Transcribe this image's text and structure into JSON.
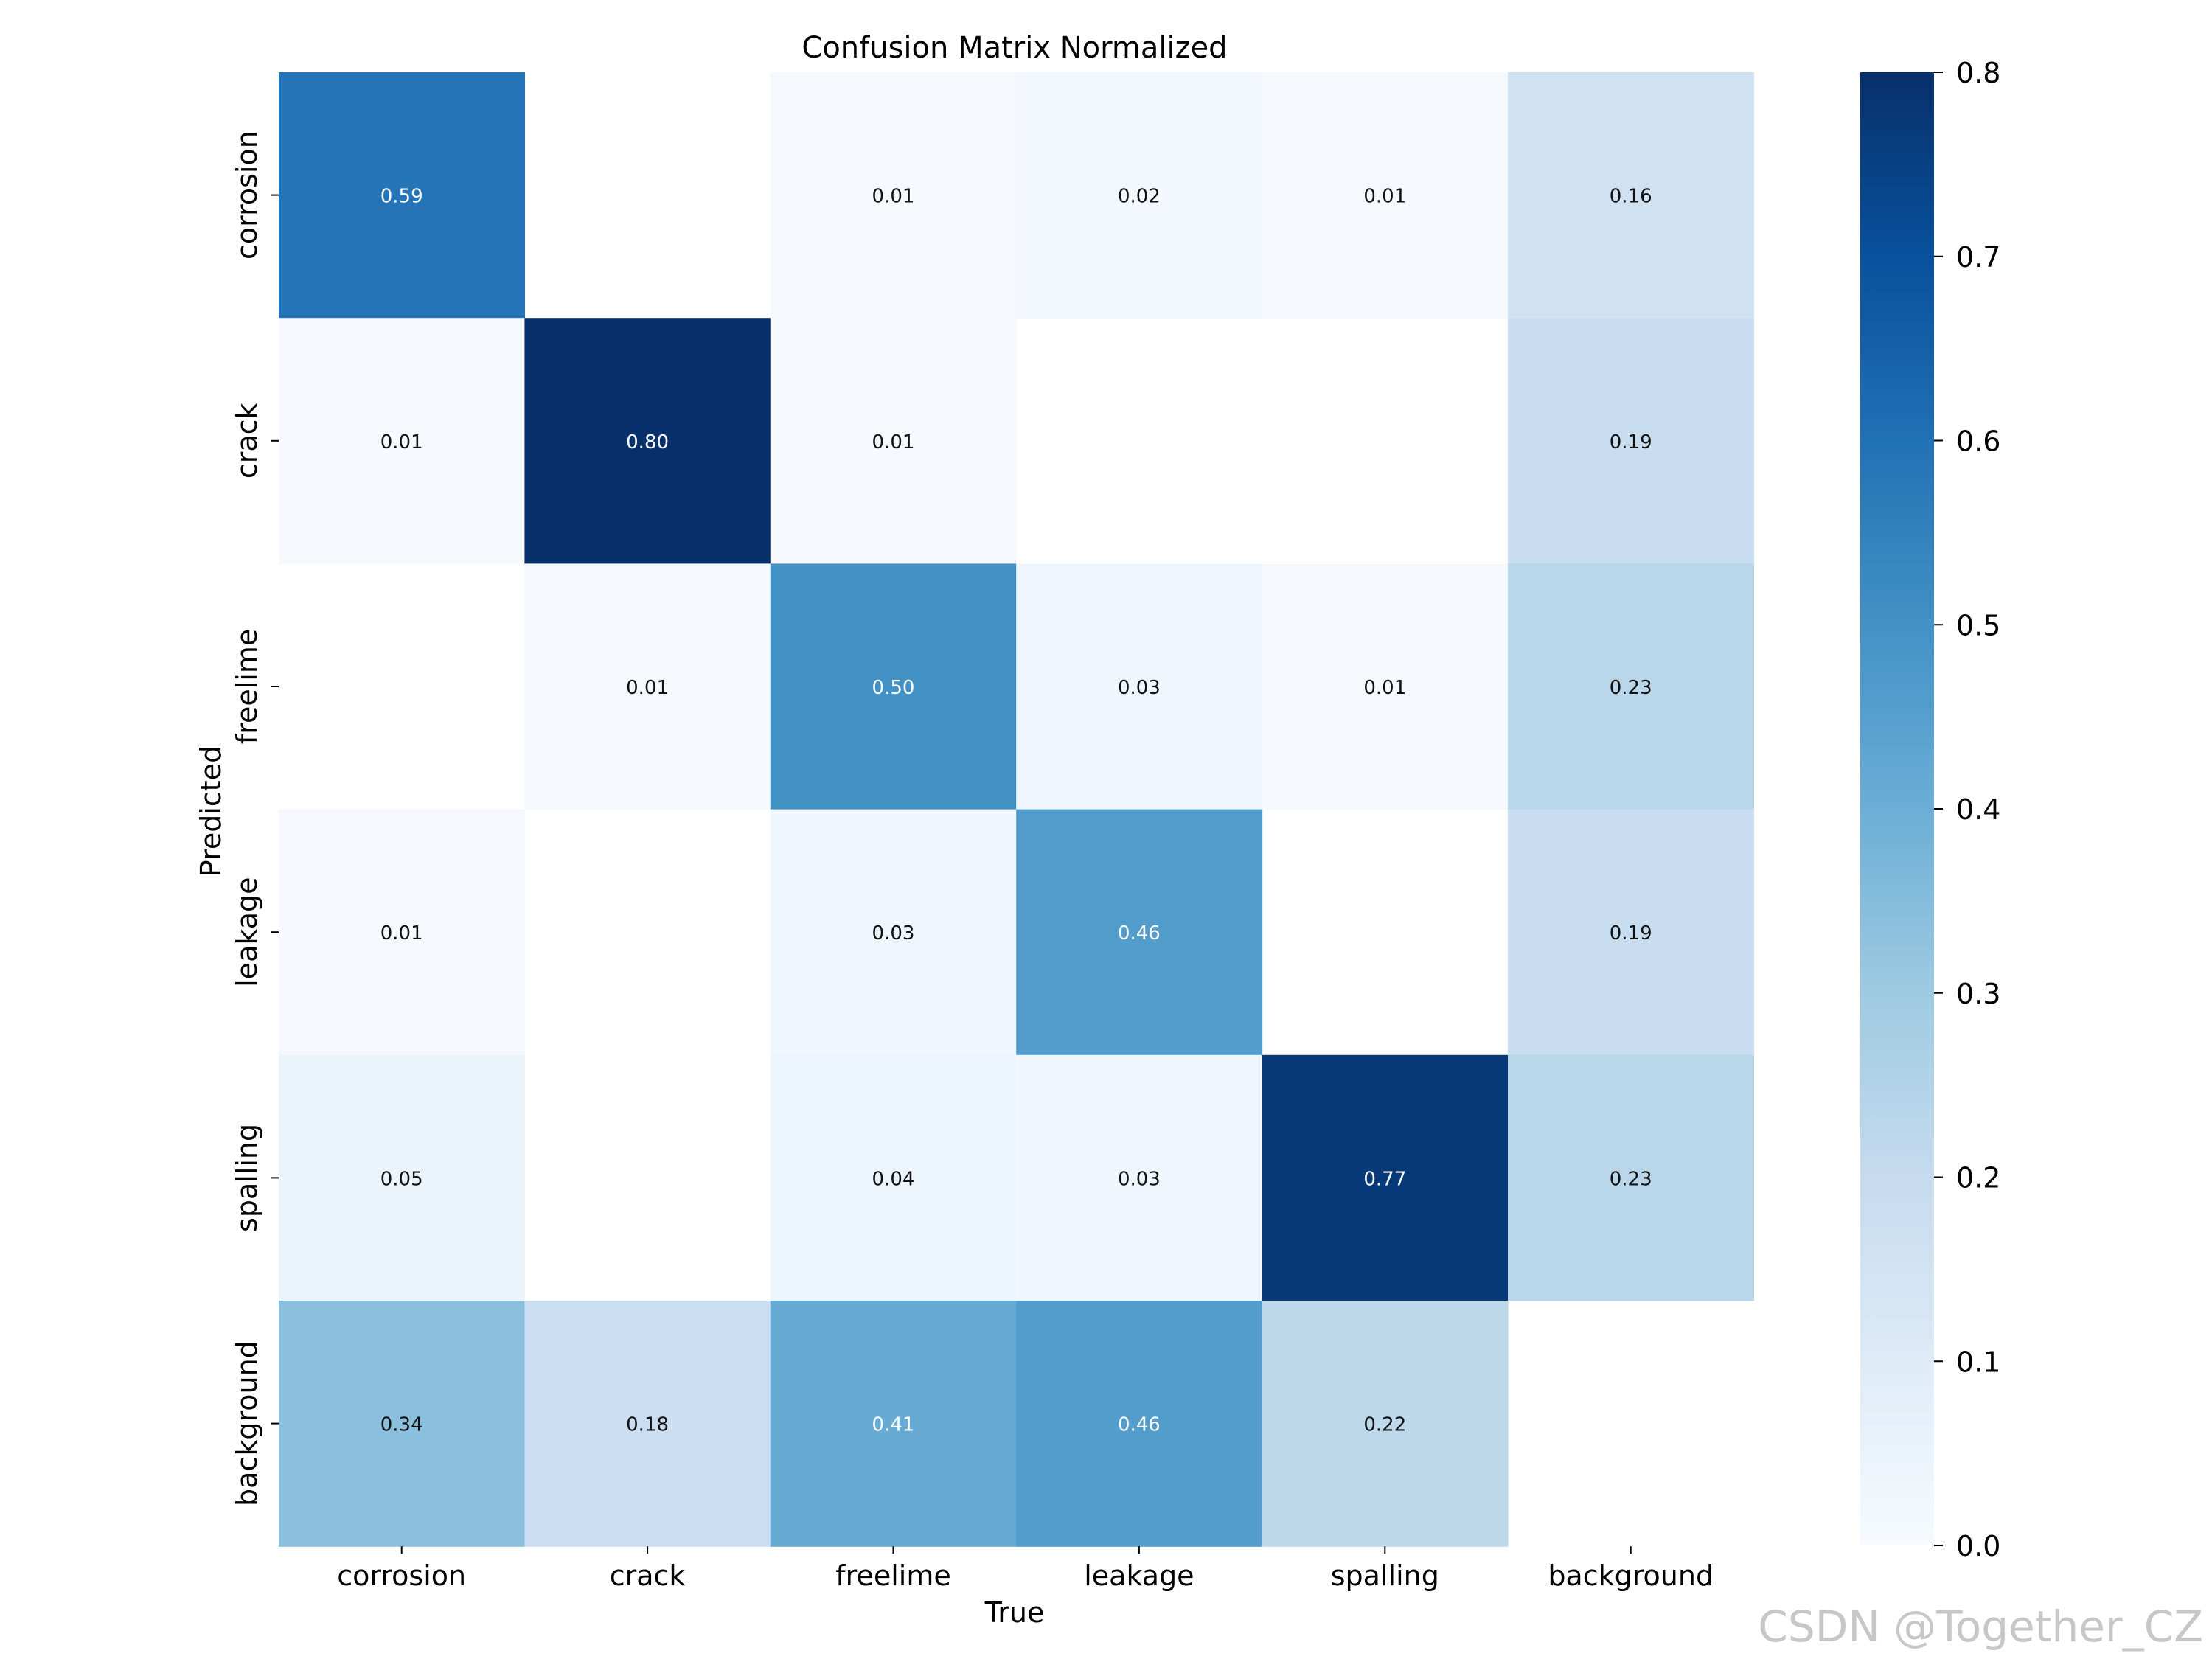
{
  "chart_data": {
    "type": "heatmap",
    "title": "Confusion Matrix Normalized",
    "xlabel": "True",
    "ylabel": "Predicted",
    "x_categories": [
      "corrosion",
      "crack",
      "freelime",
      "leakage",
      "spalling",
      "background"
    ],
    "y_categories": [
      "corrosion",
      "crack",
      "freelime",
      "leakage",
      "spalling",
      "background"
    ],
    "values": [
      [
        0.59,
        null,
        0.01,
        0.02,
        0.01,
        0.16
      ],
      [
        0.01,
        0.8,
        0.01,
        null,
        null,
        0.19
      ],
      [
        null,
        0.01,
        0.5,
        0.03,
        0.01,
        0.23
      ],
      [
        0.01,
        null,
        0.03,
        0.46,
        null,
        0.19
      ],
      [
        0.05,
        null,
        0.04,
        0.03,
        0.77,
        0.23
      ],
      [
        0.34,
        0.18,
        0.41,
        0.46,
        0.22,
        null
      ]
    ],
    "colorbar": {
      "range": [
        0,
        0.8
      ],
      "ticks": [
        "0.0",
        "0.1",
        "0.2",
        "0.3",
        "0.4",
        "0.5",
        "0.6",
        "0.7",
        "0.8"
      ],
      "colormap": "Blues"
    }
  },
  "watermark": "CSDN @Together_CZ"
}
